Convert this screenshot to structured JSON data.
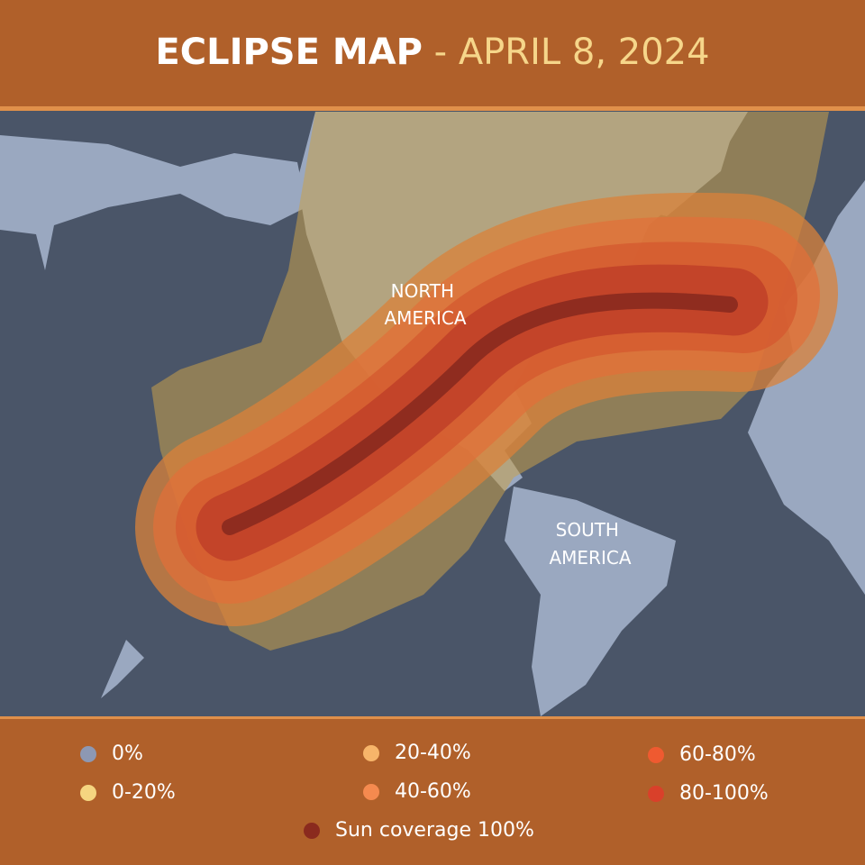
{
  "header": {
    "title_main": "ECLIPSE MAP",
    "separator": "-",
    "title_date": "APRIL 8, 2024"
  },
  "map": {
    "labels": [
      {
        "lines": [
          "NORTH",
          "AMERICA"
        ]
      },
      {
        "lines": [
          "SOUTH",
          "AMERICA"
        ]
      }
    ]
  },
  "legend": {
    "items": [
      {
        "label": "0%",
        "color": "#8d98b3"
      },
      {
        "label": "0-20%",
        "color": "#f5d580"
      },
      {
        "label": "20-40%",
        "color": "#f7b56a"
      },
      {
        "label": "40-60%",
        "color": "#f58a4f"
      },
      {
        "label": "60-80%",
        "color": "#ef5a30"
      },
      {
        "label": "80-100%",
        "color": "#d9402a"
      },
      {
        "label": "Sun coverage 100%",
        "color": "#8a2a1e"
      }
    ]
  }
}
